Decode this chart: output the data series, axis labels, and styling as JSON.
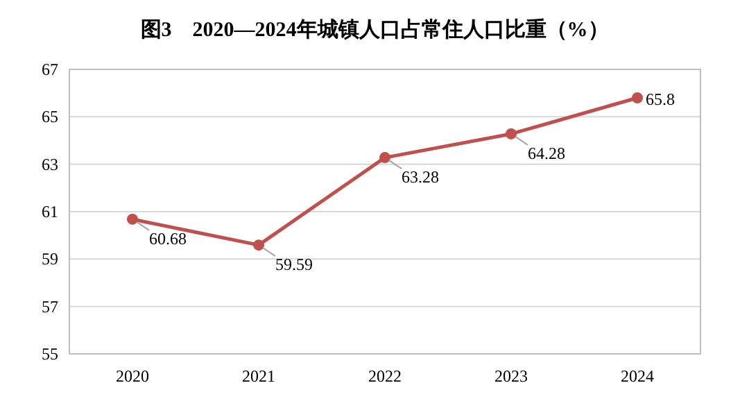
{
  "chart_data": {
    "type": "line",
    "title": "图3　2020—2024年城镇人口占常住人口比重（%）",
    "categories": [
      "2020",
      "2021",
      "2022",
      "2023",
      "2024"
    ],
    "series": [
      {
        "color": "#c0504d",
        "values": [
          60.68,
          59.59,
          63.28,
          64.28,
          65.8
        ]
      }
    ],
    "ylim": [
      55,
      67
    ],
    "yticks": [
      55,
      57,
      59,
      61,
      63,
      65,
      67
    ],
    "grid": "y",
    "marker": "circle",
    "line_style": "solid",
    "data_labels": true
  }
}
